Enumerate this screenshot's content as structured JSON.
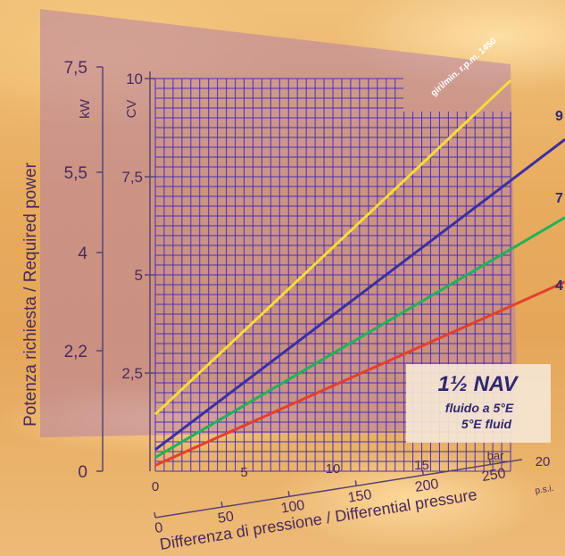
{
  "chart_data": {
    "type": "line",
    "title": "1½ NAV",
    "subtitle_it": "fluido a 5°E",
    "subtitle_en": "5°E fluid",
    "xlabel": "Differenza di pressione / Differential pressure",
    "ylabel": "Potenza richiesta / Required power",
    "x_unit_bar": "bar",
    "x_unit_psi": "p.s.i.",
    "y_unit_cv": "CV",
    "y_unit_kw": "kW",
    "xlim": [
      0,
      20
    ],
    "ylim": [
      0,
      10
    ],
    "bar_ticks": [
      "0",
      "5",
      "10",
      "15",
      "20"
    ],
    "psi_ticks": [
      "0",
      "50",
      "100",
      "150",
      "200",
      "250"
    ],
    "cv_ticks": [
      "2,5",
      "5",
      "7,5",
      "10"
    ],
    "kw_ticks": [
      "0",
      "2,2",
      "4",
      "5,5",
      "7,5"
    ],
    "grid": true,
    "series": [
      {
        "name": "giri/min. r.p.m. 1450",
        "color": "#f7dc38",
        "x": [
          0,
          20
        ],
        "y": [
          1.45,
          9.95
        ]
      },
      {
        "name": "9",
        "color": "#3b2fa0",
        "x": [
          0,
          20
        ],
        "y": [
          0.55,
          7.4
        ]
      },
      {
        "name": "7",
        "color": "#1fb25a",
        "x": [
          0,
          20
        ],
        "y": [
          0.35,
          5.65
        ]
      },
      {
        "name": "4",
        "color": "#e3402a",
        "x": [
          0,
          20
        ],
        "y": [
          0.15,
          4.2
        ]
      }
    ]
  }
}
